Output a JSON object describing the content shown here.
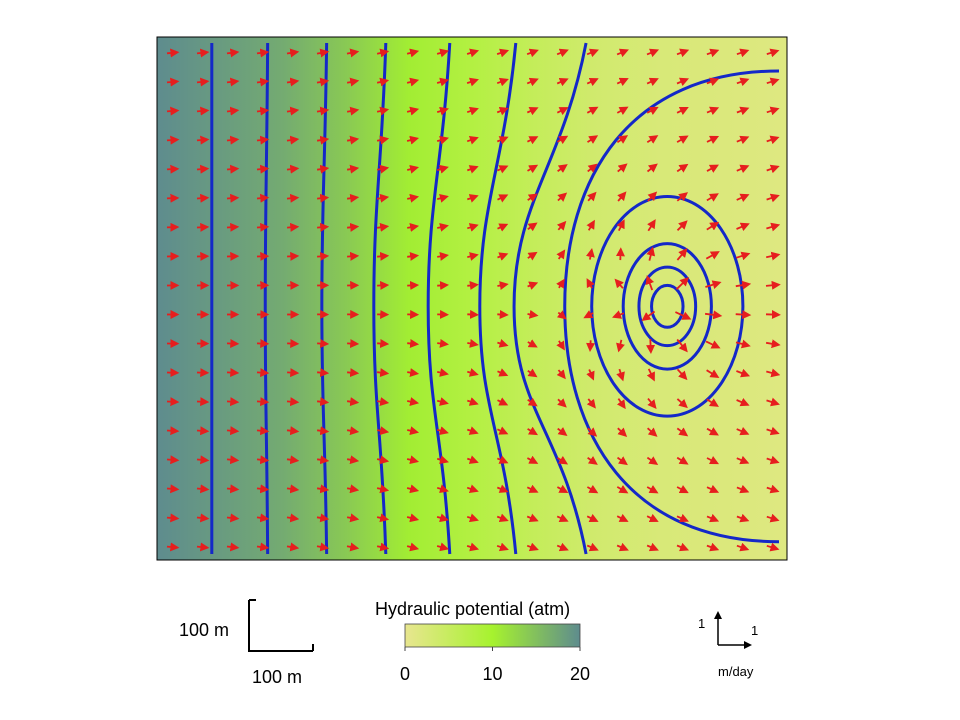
{
  "chart_data": {
    "type": "heatmap",
    "title": "",
    "field": {
      "name": "Hydraulic potential",
      "colormap": [
        "#E8E690",
        "#A6F22E",
        "#5E8C8E"
      ],
      "colormap_stops": [
        0,
        10,
        20
      ],
      "profile_x_fraction": [
        0.0,
        0.1,
        0.2,
        0.3,
        0.4,
        0.5,
        0.6,
        0.7,
        0.8,
        0.9,
        1.0
      ],
      "profile_value": [
        20,
        18.5,
        17,
        14,
        10.5,
        8,
        5.5,
        3.5,
        2.5,
        2,
        1.5
      ]
    },
    "colorbar": {
      "label": "Hydraulic potential (atm)",
      "min": 0,
      "max": 20,
      "ticks": [
        0,
        10,
        20
      ]
    },
    "contours": {
      "color": "#1428C8",
      "vertical_lines_x": [
        0.087,
        0.175,
        0.268,
        0.36,
        0.459,
        0.56,
        0.662
      ],
      "well": {
        "center": [
          0.81,
          0.515
        ]
      },
      "loops_radius": [
        [
          0.296,
          0.45
        ],
        [
          0.12,
          0.21
        ],
        [
          0.07,
          0.12
        ],
        [
          0.045,
          0.075
        ],
        [
          0.025,
          0.04
        ]
      ]
    },
    "vectors": {
      "color": "#E61E1E",
      "columns": 21,
      "rows": 18,
      "pattern": "uniform rightward flow with radial outflow from a source near the right side"
    },
    "scale_bar": {
      "vertical_label": "100 m",
      "horizontal_label": "100 m"
    },
    "velocity_key": {
      "vertical_label": "1",
      "horizontal_label": "1",
      "unit_label": "m/day"
    }
  }
}
